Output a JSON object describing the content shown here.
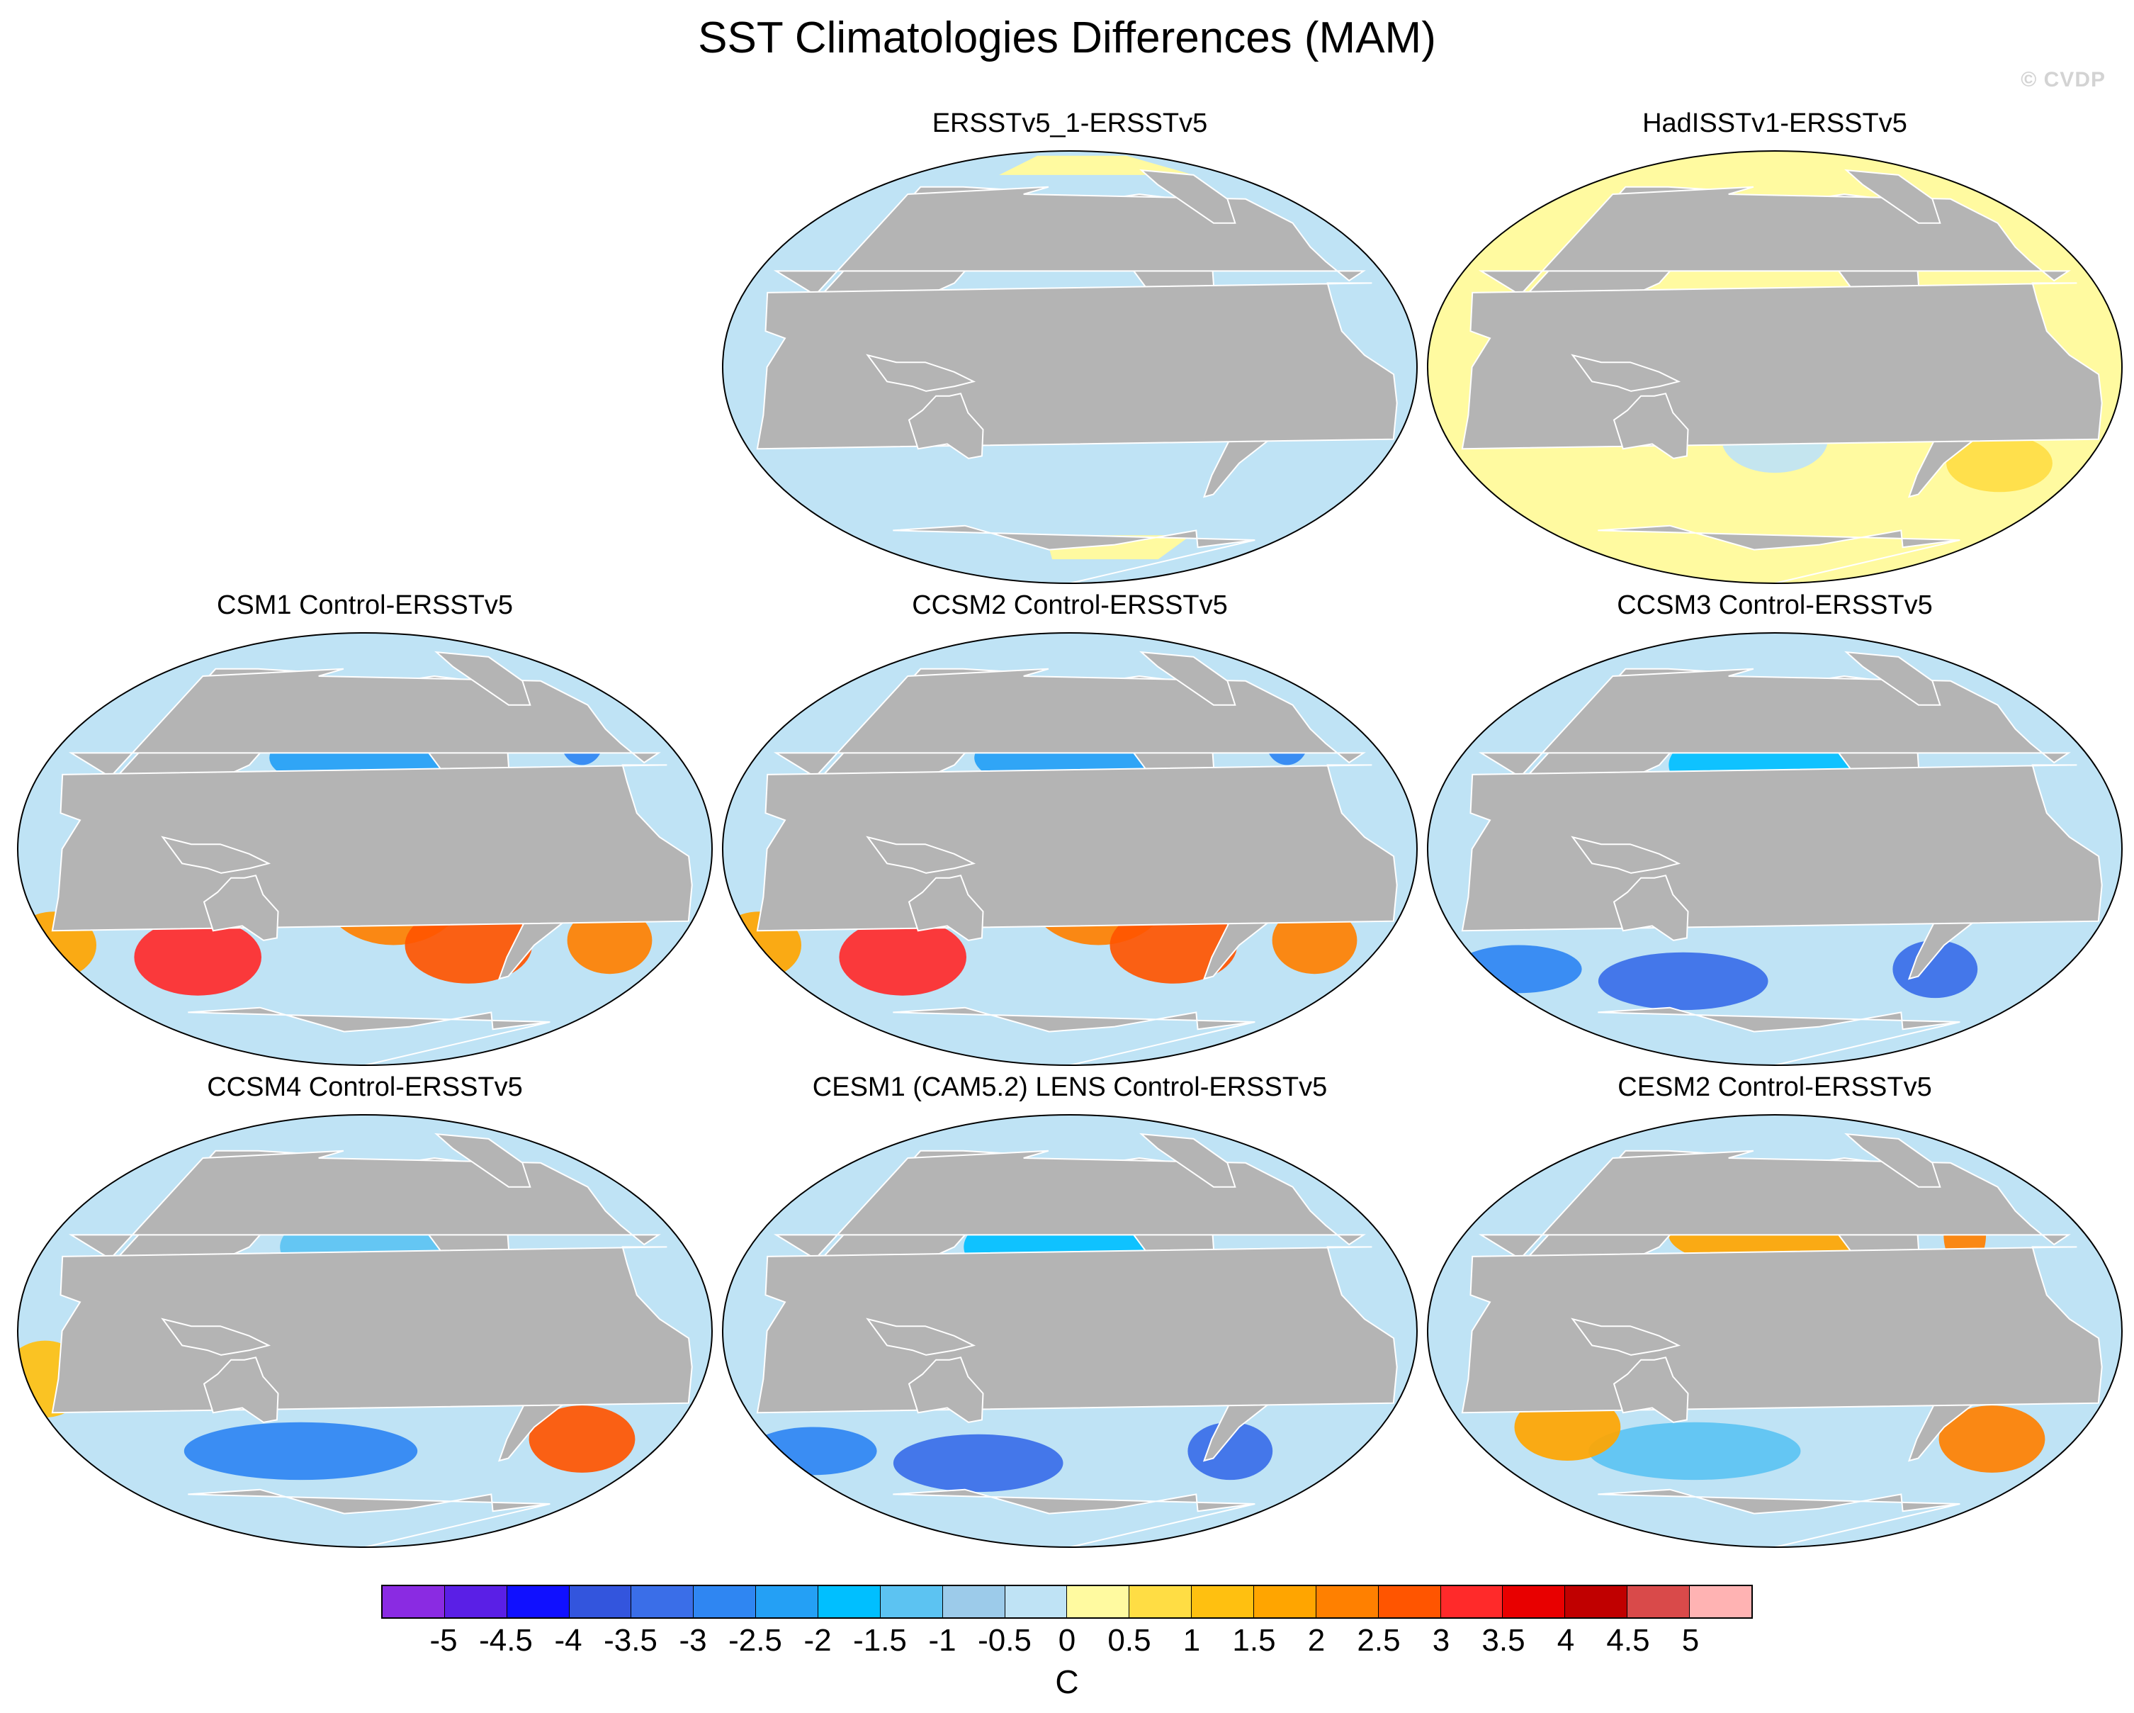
{
  "figure": {
    "title": "SST Climatologies Differences (MAM)",
    "credit": "© CVDP"
  },
  "panels": [
    {
      "title": "ERSSTv5_1-ERSSTv5",
      "pattern": "uniform"
    },
    {
      "title": "HadISSTv1-ERSSTv5",
      "pattern": "small"
    },
    {
      "title": "CSM1 Control-ERSSTv5",
      "pattern": "warm-south"
    },
    {
      "title": "CCSM2 Control-ERSSTv5",
      "pattern": "warm-south"
    },
    {
      "title": "CCSM3 Control-ERSSTv5",
      "pattern": "cold"
    },
    {
      "title": "CCSM4 Control-ERSSTv5",
      "pattern": "cold-south"
    },
    {
      "title": "CESM1 (CAM5.2) LENS Control-ERSSTv5",
      "pattern": "cold"
    },
    {
      "title": "CESM2 Control-ERSSTv5",
      "pattern": "mixed"
    }
  ],
  "colorbar": {
    "unit": "C",
    "tick_labels": [
      "-5",
      "-4.5",
      "-4",
      "-3.5",
      "-3",
      "-2.5",
      "-2",
      "-1.5",
      "-1",
      "-0.5",
      "0",
      "0.5",
      "1",
      "1.5",
      "2",
      "2.5",
      "3",
      "3.5",
      "4",
      "4.5",
      "5"
    ],
    "colors": [
      "#8a2be2",
      "#5a1fe6",
      "#1010ff",
      "#3355dd",
      "#3a6ee8",
      "#2f86f2",
      "#24a0f5",
      "#00bfff",
      "#5cc3f2",
      "#9ccbea",
      "#bfe3f5",
      "#fffaa0",
      "#ffdd44",
      "#ffc010",
      "#ffa500",
      "#ff8000",
      "#ff5500",
      "#ff2a2a",
      "#e80000",
      "#c00000",
      "#d94a4a",
      "#ffb3b3"
    ]
  },
  "map_colors": {
    "land": "#b4b4b4",
    "ocean_neutral": "#bfe3f5",
    "outline": "#000000"
  }
}
